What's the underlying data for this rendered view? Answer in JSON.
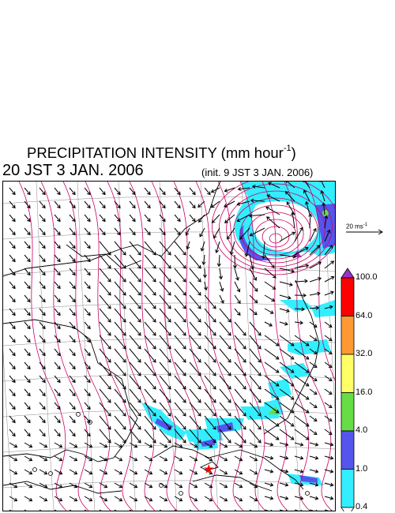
{
  "title": {
    "text": "PRECIPITATION INTENSITY (mm hour",
    "sup": "-1",
    "close": ")"
  },
  "valid_time": "20 JST 3 JAN. 2006",
  "init_time": "(init. 9 JST 3 JAN. 2006)",
  "reference_vector": {
    "label": "20 ms",
    "sup": "-1"
  },
  "colorbar": {
    "labels": [
      "100.0",
      "64.0",
      "32.0",
      "16.0",
      "4.0",
      "1.0",
      "0.4"
    ],
    "colors": [
      "#9933cc",
      "#ff0000",
      "#ff9933",
      "#ffff66",
      "#66dd44",
      "#5555ee",
      "#33eeff",
      "#ffffff"
    ]
  },
  "map_colors": {
    "contour": "#cc0066",
    "coast": "#000000",
    "grid": "#888888",
    "marker": "#ff0000"
  }
}
